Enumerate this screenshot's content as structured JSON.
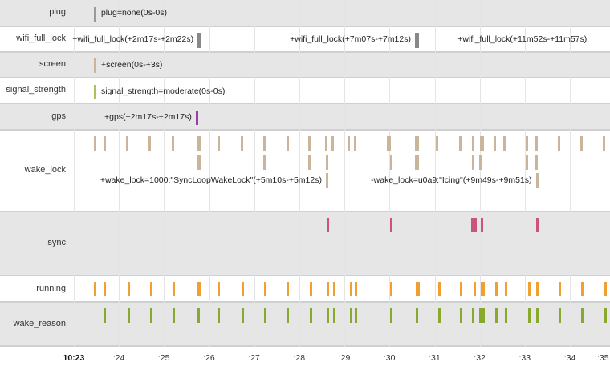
{
  "axis": {
    "start_minute": 23,
    "ticks": [
      "10:23",
      ":24",
      ":25",
      ":26",
      ":27",
      ":28",
      ":29",
      ":30",
      ":31",
      ":32",
      ":33",
      ":34",
      ":35"
    ]
  },
  "rows": [
    {
      "name": "plug",
      "label": "plug",
      "color": "#999999",
      "lanes": [
        [
          {
            "t": 23.48,
            "w": 1
          }
        ]
      ],
      "labels": [
        {
          "text": "plug=none(0s-0s)",
          "t": 23.48,
          "side": "right",
          "lane": 0
        }
      ]
    },
    {
      "name": "wifi_full_lock",
      "label": "wifi_full_lock",
      "color": "#888888",
      "lanes": [
        [
          {
            "t": 25.78,
            "w": 2
          },
          {
            "t": 30.6,
            "w": 2
          }
        ]
      ],
      "labels": [
        {
          "text": "+wifi_full_lock(+2m17s-+2m22s)",
          "t": 25.78,
          "side": "left",
          "lane": 0
        },
        {
          "text": "+wifi_full_lock(+7m07s-+7m12s)",
          "t": 30.6,
          "side": "left",
          "lane": 0
        },
        {
          "text": "+wifi_full_lock(+11m52s-+11m57s)",
          "t": 34.5,
          "side": "left",
          "lane": 0
        }
      ]
    },
    {
      "name": "screen",
      "label": "screen",
      "color": "#c9b59b",
      "lanes": [
        [
          {
            "t": 23.48,
            "w": 1
          }
        ]
      ],
      "labels": [
        {
          "text": "+screen(0s-+3s)",
          "t": 23.48,
          "side": "right",
          "lane": 0
        }
      ]
    },
    {
      "name": "signal_strength",
      "label": "signal_strength",
      "color": "#a8c25e",
      "lanes": [
        [
          {
            "t": 23.48,
            "w": 1
          }
        ]
      ],
      "labels": [
        {
          "text": "signal_strength=moderate(0s-0s)",
          "t": 23.48,
          "side": "right",
          "lane": 0
        }
      ]
    },
    {
      "name": "gps",
      "label": "gps",
      "color": "#9a3ea3",
      "lanes": [
        [
          {
            "t": 25.74,
            "w": 1
          }
        ]
      ],
      "labels": [
        {
          "text": "+gps(+2m17s-+2m17s)",
          "t": 25.74,
          "side": "left",
          "lane": 0
        }
      ]
    },
    {
      "name": "wake_lock",
      "label": "wake_lock",
      "color": "#c9b59b",
      "lanes": [
        [
          {
            "t": 23.48
          },
          {
            "t": 23.69
          },
          {
            "t": 24.19
          },
          {
            "t": 24.69
          },
          {
            "t": 25.19
          },
          {
            "t": 25.76,
            "w": 2
          },
          {
            "t": 26.22
          },
          {
            "t": 26.73
          },
          {
            "t": 27.23
          },
          {
            "t": 27.75
          },
          {
            "t": 28.23
          },
          {
            "t": 28.6
          },
          {
            "t": 28.74
          },
          {
            "t": 29.1
          },
          {
            "t": 29.24
          },
          {
            "t": 29.97
          },
          {
            "t": 30.01
          },
          {
            "t": 30.6,
            "w": 2
          },
          {
            "t": 31.06
          },
          {
            "t": 31.56
          },
          {
            "t": 31.86
          },
          {
            "t": 32.04,
            "w": 2
          },
          {
            "t": 32.34
          },
          {
            "t": 32.55
          },
          {
            "t": 33.05
          },
          {
            "t": 33.25
          },
          {
            "t": 33.76
          },
          {
            "t": 34.26
          },
          {
            "t": 34.76
          }
        ],
        [
          {
            "t": 25.76,
            "w": 2
          },
          {
            "t": 27.23
          },
          {
            "t": 28.23
          },
          {
            "t": 28.62
          },
          {
            "t": 30.03
          },
          {
            "t": 30.6,
            "w": 2
          },
          {
            "t": 31.86
          },
          {
            "t": 32.02
          },
          {
            "t": 33.05
          },
          {
            "t": 33.26
          }
        ],
        [
          {
            "t": 28.62
          },
          {
            "t": 33.27
          }
        ]
      ],
      "labels": [
        {
          "text": "+wake_lock=1000:\"SyncLoopWakeLock\"(+5m10s-+5m12s)",
          "t": 28.62,
          "side": "left",
          "lane": 2
        },
        {
          "text": "-wake_lock=u0a9:\"Icing\"(+9m49s-+9m51s)",
          "t": 33.27,
          "side": "left",
          "lane": 2
        }
      ]
    },
    {
      "name": "sync",
      "label": "sync",
      "color": "#c9557a",
      "lanes": [
        [
          {
            "t": 28.64
          },
          {
            "t": 30.03
          },
          {
            "t": 31.84
          },
          {
            "t": 31.9
          },
          {
            "t": 32.05
          },
          {
            "t": 33.28
          }
        ]
      ],
      "labels": []
    },
    {
      "name": "running",
      "label": "running",
      "color": "#f0a030",
      "lanes": [
        [
          {
            "t": 23.48
          },
          {
            "t": 23.69
          },
          {
            "t": 24.21
          },
          {
            "t": 24.71
          },
          {
            "t": 25.21
          },
          {
            "t": 25.78,
            "w": 2
          },
          {
            "t": 26.22
          },
          {
            "t": 26.75
          },
          {
            "t": 27.25
          },
          {
            "t": 27.75
          },
          {
            "t": 28.25
          },
          {
            "t": 28.64
          },
          {
            "t": 28.77
          },
          {
            "t": 29.14
          },
          {
            "t": 29.26
          },
          {
            "t": 30.03
          },
          {
            "t": 30.62,
            "w": 2
          },
          {
            "t": 31.1
          },
          {
            "t": 31.58
          },
          {
            "t": 31.88
          },
          {
            "t": 32.07,
            "w": 2
          },
          {
            "t": 32.36
          },
          {
            "t": 32.59
          },
          {
            "t": 33.09
          },
          {
            "t": 33.28
          },
          {
            "t": 33.78
          },
          {
            "t": 34.28
          },
          {
            "t": 34.78
          }
        ]
      ],
      "labels": []
    },
    {
      "name": "wake_reason",
      "label": "wake_reason",
      "color": "#88a82e",
      "lanes": [
        [
          {
            "t": 23.69
          },
          {
            "t": 24.21
          },
          {
            "t": 24.71
          },
          {
            "t": 25.21
          },
          {
            "t": 25.76
          },
          {
            "t": 26.22
          },
          {
            "t": 26.75
          },
          {
            "t": 27.25
          },
          {
            "t": 27.75
          },
          {
            "t": 28.25
          },
          {
            "t": 28.64
          },
          {
            "t": 28.77
          },
          {
            "t": 29.14
          },
          {
            "t": 29.26
          },
          {
            "t": 30.03
          },
          {
            "t": 30.6
          },
          {
            "t": 31.1
          },
          {
            "t": 31.58
          },
          {
            "t": 31.86
          },
          {
            "t": 32.02
          },
          {
            "t": 32.08
          },
          {
            "t": 32.36
          },
          {
            "t": 32.59
          },
          {
            "t": 33.09
          },
          {
            "t": 33.28
          },
          {
            "t": 33.78
          },
          {
            "t": 34.28
          },
          {
            "t": 34.78
          }
        ]
      ],
      "labels": []
    }
  ]
}
